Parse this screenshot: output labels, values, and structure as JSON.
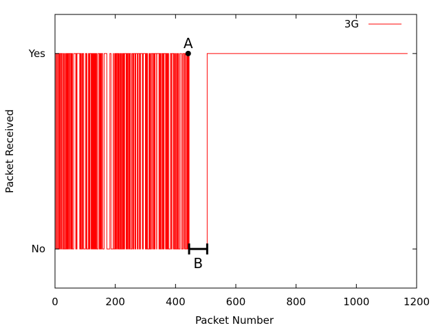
{
  "chart_data": {
    "type": "line",
    "title": "",
    "xlabel": "Packet Number",
    "ylabel": "Packet Received",
    "xlim": [
      0,
      1200
    ],
    "ylim": [
      -0.2,
      1.2
    ],
    "x_ticks": [
      0,
      200,
      400,
      600,
      800,
      1000,
      1200
    ],
    "y_ticks": [
      {
        "value": 0,
        "label": "No"
      },
      {
        "value": 1,
        "label": "Yes"
      }
    ],
    "grid": false,
    "legend_position": "top-right",
    "series": [
      {
        "name": "3G",
        "color": "#ff0000",
        "step": true,
        "outage_start": 445,
        "outage_end": 505,
        "x_max": 1170,
        "values_summary": "Packets 0-445 alternate rapidly between Yes (1) and No (0); packets 445-505 not received (0); packets 505-1170 all received (1)"
      }
    ],
    "annotations": [
      {
        "label": "A",
        "x": 442,
        "y": 1,
        "marker": "dot"
      },
      {
        "label": "B",
        "x_start": 445,
        "x_end": 505,
        "y": 0,
        "marker": "interval"
      }
    ]
  }
}
